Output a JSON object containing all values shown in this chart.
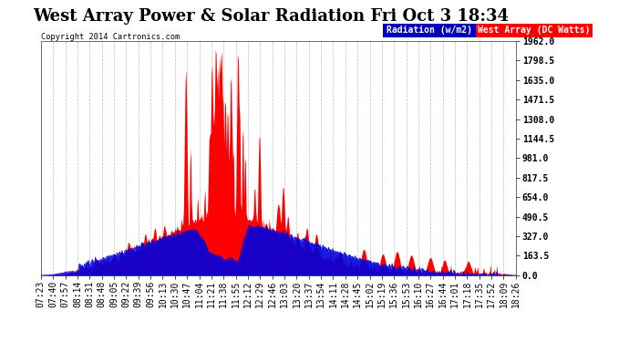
{
  "title": "West Array Power & Solar Radiation Fri Oct 3 18:34",
  "copyright": "Copyright 2014 Cartronics.com",
  "legend_radiation": "Radiation (w/m2)",
  "legend_west": "West Array (DC Watts)",
  "ymin": 0.0,
  "ymax": 1962.0,
  "yticks": [
    0.0,
    163.5,
    327.0,
    490.5,
    654.0,
    817.5,
    981.0,
    1144.5,
    1308.0,
    1471.5,
    1635.0,
    1798.5,
    1962.0
  ],
  "x_labels": [
    "07:23",
    "07:40",
    "07:57",
    "08:14",
    "08:31",
    "08:48",
    "09:05",
    "09:22",
    "09:39",
    "09:56",
    "10:13",
    "10:30",
    "10:47",
    "11:04",
    "11:21",
    "11:38",
    "11:55",
    "12:12",
    "12:29",
    "12:46",
    "13:03",
    "13:20",
    "13:37",
    "13:54",
    "14:11",
    "14:28",
    "14:45",
    "15:02",
    "15:19",
    "15:36",
    "15:53",
    "16:10",
    "16:27",
    "16:44",
    "17:01",
    "17:18",
    "17:35",
    "17:52",
    "18:09",
    "18:26"
  ],
  "background_color": "#ffffff",
  "plot_bg_color": "#ffffff",
  "grid_color": "#bbbbbb",
  "title_fontsize": 13,
  "tick_fontsize": 7,
  "fill_radiation_color": "#0000dd",
  "fill_west_color": "#ff0000"
}
